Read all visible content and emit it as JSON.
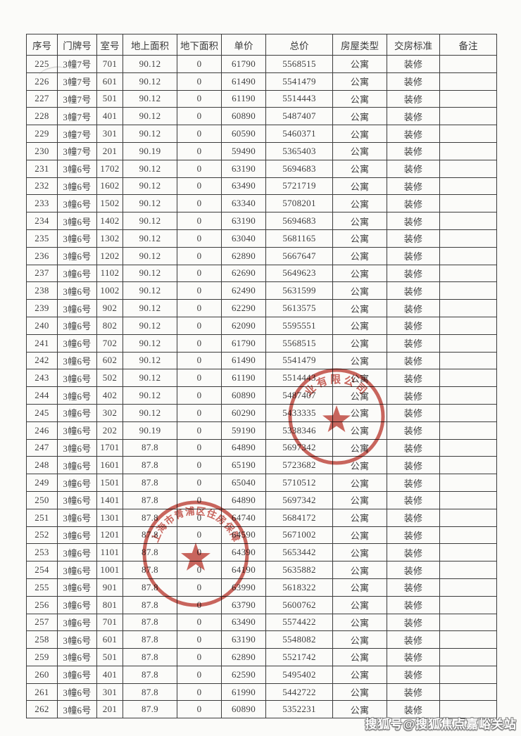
{
  "document": {
    "watermark": "搜狐号@搜狐焦点嘉峪关站"
  },
  "colors": {
    "stamp_red": "#c0443b",
    "table_line": "#3c3c3c",
    "text": "#3f3f3f"
  },
  "table": {
    "headers": [
      "序号",
      "门牌号",
      "室号",
      "地上面积",
      "地下面积",
      "单价",
      "总价",
      "房屋类型",
      "交房标准",
      "备注"
    ],
    "rows": [
      [
        "225",
        "3幢7号",
        "701",
        "90.12",
        "0",
        "61790",
        "5568515",
        "公寓",
        "装修",
        ""
      ],
      [
        "226",
        "3幢7号",
        "601",
        "90.12",
        "0",
        "61490",
        "5541479",
        "公寓",
        "装修",
        ""
      ],
      [
        "227",
        "3幢7号",
        "501",
        "90.12",
        "0",
        "61190",
        "5514443",
        "公寓",
        "装修",
        ""
      ],
      [
        "228",
        "3幢7号",
        "401",
        "90.12",
        "0",
        "60890",
        "5487407",
        "公寓",
        "装修",
        ""
      ],
      [
        "229",
        "3幢7号",
        "301",
        "90.12",
        "0",
        "60590",
        "5460371",
        "公寓",
        "装修",
        ""
      ],
      [
        "230",
        "3幢7号",
        "201",
        "90.19",
        "0",
        "59490",
        "5365403",
        "公寓",
        "装修",
        ""
      ],
      [
        "231",
        "3幢6号",
        "1702",
        "90.12",
        "0",
        "63190",
        "5694683",
        "公寓",
        "装修",
        ""
      ],
      [
        "232",
        "3幢6号",
        "1602",
        "90.12",
        "0",
        "63490",
        "5721719",
        "公寓",
        "装修",
        ""
      ],
      [
        "233",
        "3幢6号",
        "1502",
        "90.12",
        "0",
        "63340",
        "5708201",
        "公寓",
        "装修",
        ""
      ],
      [
        "234",
        "3幢6号",
        "1402",
        "90.12",
        "0",
        "63190",
        "5694683",
        "公寓",
        "装修",
        ""
      ],
      [
        "235",
        "3幢6号",
        "1302",
        "90.12",
        "0",
        "63040",
        "5681165",
        "公寓",
        "装修",
        ""
      ],
      [
        "236",
        "3幢6号",
        "1202",
        "90.12",
        "0",
        "62890",
        "5667647",
        "公寓",
        "装修",
        ""
      ],
      [
        "237",
        "3幢6号",
        "1102",
        "90.12",
        "0",
        "62690",
        "5649623",
        "公寓",
        "装修",
        ""
      ],
      [
        "238",
        "3幢6号",
        "1002",
        "90.12",
        "0",
        "62490",
        "5631599",
        "公寓",
        "装修",
        ""
      ],
      [
        "239",
        "3幢6号",
        "902",
        "90.12",
        "0",
        "62290",
        "5613575",
        "公寓",
        "装修",
        ""
      ],
      [
        "240",
        "3幢6号",
        "802",
        "90.12",
        "0",
        "62090",
        "5595551",
        "公寓",
        "装修",
        ""
      ],
      [
        "241",
        "3幢6号",
        "702",
        "90.12",
        "0",
        "61790",
        "5568515",
        "公寓",
        "装修",
        ""
      ],
      [
        "242",
        "3幢6号",
        "602",
        "90.12",
        "0",
        "61490",
        "5541479",
        "公寓",
        "装修",
        ""
      ],
      [
        "243",
        "3幢6号",
        "502",
        "90.12",
        "0",
        "61190",
        "5514443",
        "公寓",
        "装修",
        ""
      ],
      [
        "244",
        "3幢6号",
        "402",
        "90.12",
        "0",
        "60890",
        "5487407",
        "公寓",
        "装修",
        ""
      ],
      [
        "245",
        "3幢6号",
        "302",
        "90.12",
        "0",
        "60290",
        "5433335",
        "公寓",
        "装修",
        ""
      ],
      [
        "246",
        "3幢6号",
        "202",
        "90.19",
        "0",
        "59190",
        "5338346",
        "公寓",
        "装修",
        ""
      ],
      [
        "247",
        "3幢6号",
        "1701",
        "87.8",
        "0",
        "64890",
        "5697342",
        "公寓",
        "装修",
        ""
      ],
      [
        "248",
        "3幢6号",
        "1601",
        "87.8",
        "0",
        "65190",
        "5723682",
        "公寓",
        "装修",
        ""
      ],
      [
        "249",
        "3幢6号",
        "1501",
        "87.8",
        "0",
        "65040",
        "5710512",
        "公寓",
        "装修",
        ""
      ],
      [
        "250",
        "3幢6号",
        "1401",
        "87.8",
        "0",
        "64890",
        "5697342",
        "公寓",
        "装修",
        ""
      ],
      [
        "251",
        "3幢6号",
        "1301",
        "87.8",
        "0",
        "64740",
        "5684172",
        "公寓",
        "装修",
        ""
      ],
      [
        "252",
        "3幢6号",
        "1201",
        "87.8",
        "0",
        "64590",
        "5671002",
        "公寓",
        "装修",
        ""
      ],
      [
        "253",
        "3幢6号",
        "1101",
        "87.8",
        "0",
        "64390",
        "5653442",
        "公寓",
        "装修",
        ""
      ],
      [
        "254",
        "3幢6号",
        "1001",
        "87.8",
        "0",
        "64190",
        "5635882",
        "公寓",
        "装修",
        ""
      ],
      [
        "255",
        "3幢6号",
        "901",
        "87.8",
        "0",
        "63990",
        "5618322",
        "公寓",
        "装修",
        ""
      ],
      [
        "256",
        "3幢6号",
        "801",
        "87.8",
        "0",
        "63790",
        "5600762",
        "公寓",
        "装修",
        ""
      ],
      [
        "257",
        "3幢6号",
        "701",
        "87.8",
        "0",
        "63490",
        "5574422",
        "公寓",
        "装修",
        ""
      ],
      [
        "258",
        "3幢6号",
        "601",
        "87.8",
        "0",
        "63190",
        "5548082",
        "公寓",
        "装修",
        ""
      ],
      [
        "259",
        "3幢6号",
        "501",
        "87.8",
        "0",
        "62890",
        "5521742",
        "公寓",
        "装修",
        ""
      ],
      [
        "260",
        "3幢6号",
        "401",
        "87.8",
        "0",
        "62590",
        "5495402",
        "公寓",
        "装修",
        ""
      ],
      [
        "261",
        "3幢6号",
        "301",
        "87.8",
        "0",
        "61990",
        "5442722",
        "公寓",
        "装修",
        ""
      ],
      [
        "262",
        "3幢6号",
        "201",
        "87.9",
        "0",
        "60890",
        "5352231",
        "公寓",
        "装修",
        ""
      ]
    ]
  },
  "stamps": [
    {
      "id": "company-seal",
      "arc_text": "业有限公司",
      "color": "#c0443b"
    },
    {
      "id": "housing-bureau-seal",
      "arc_text": "上海市青浦区住房保障",
      "color": "#c0443b"
    }
  ]
}
